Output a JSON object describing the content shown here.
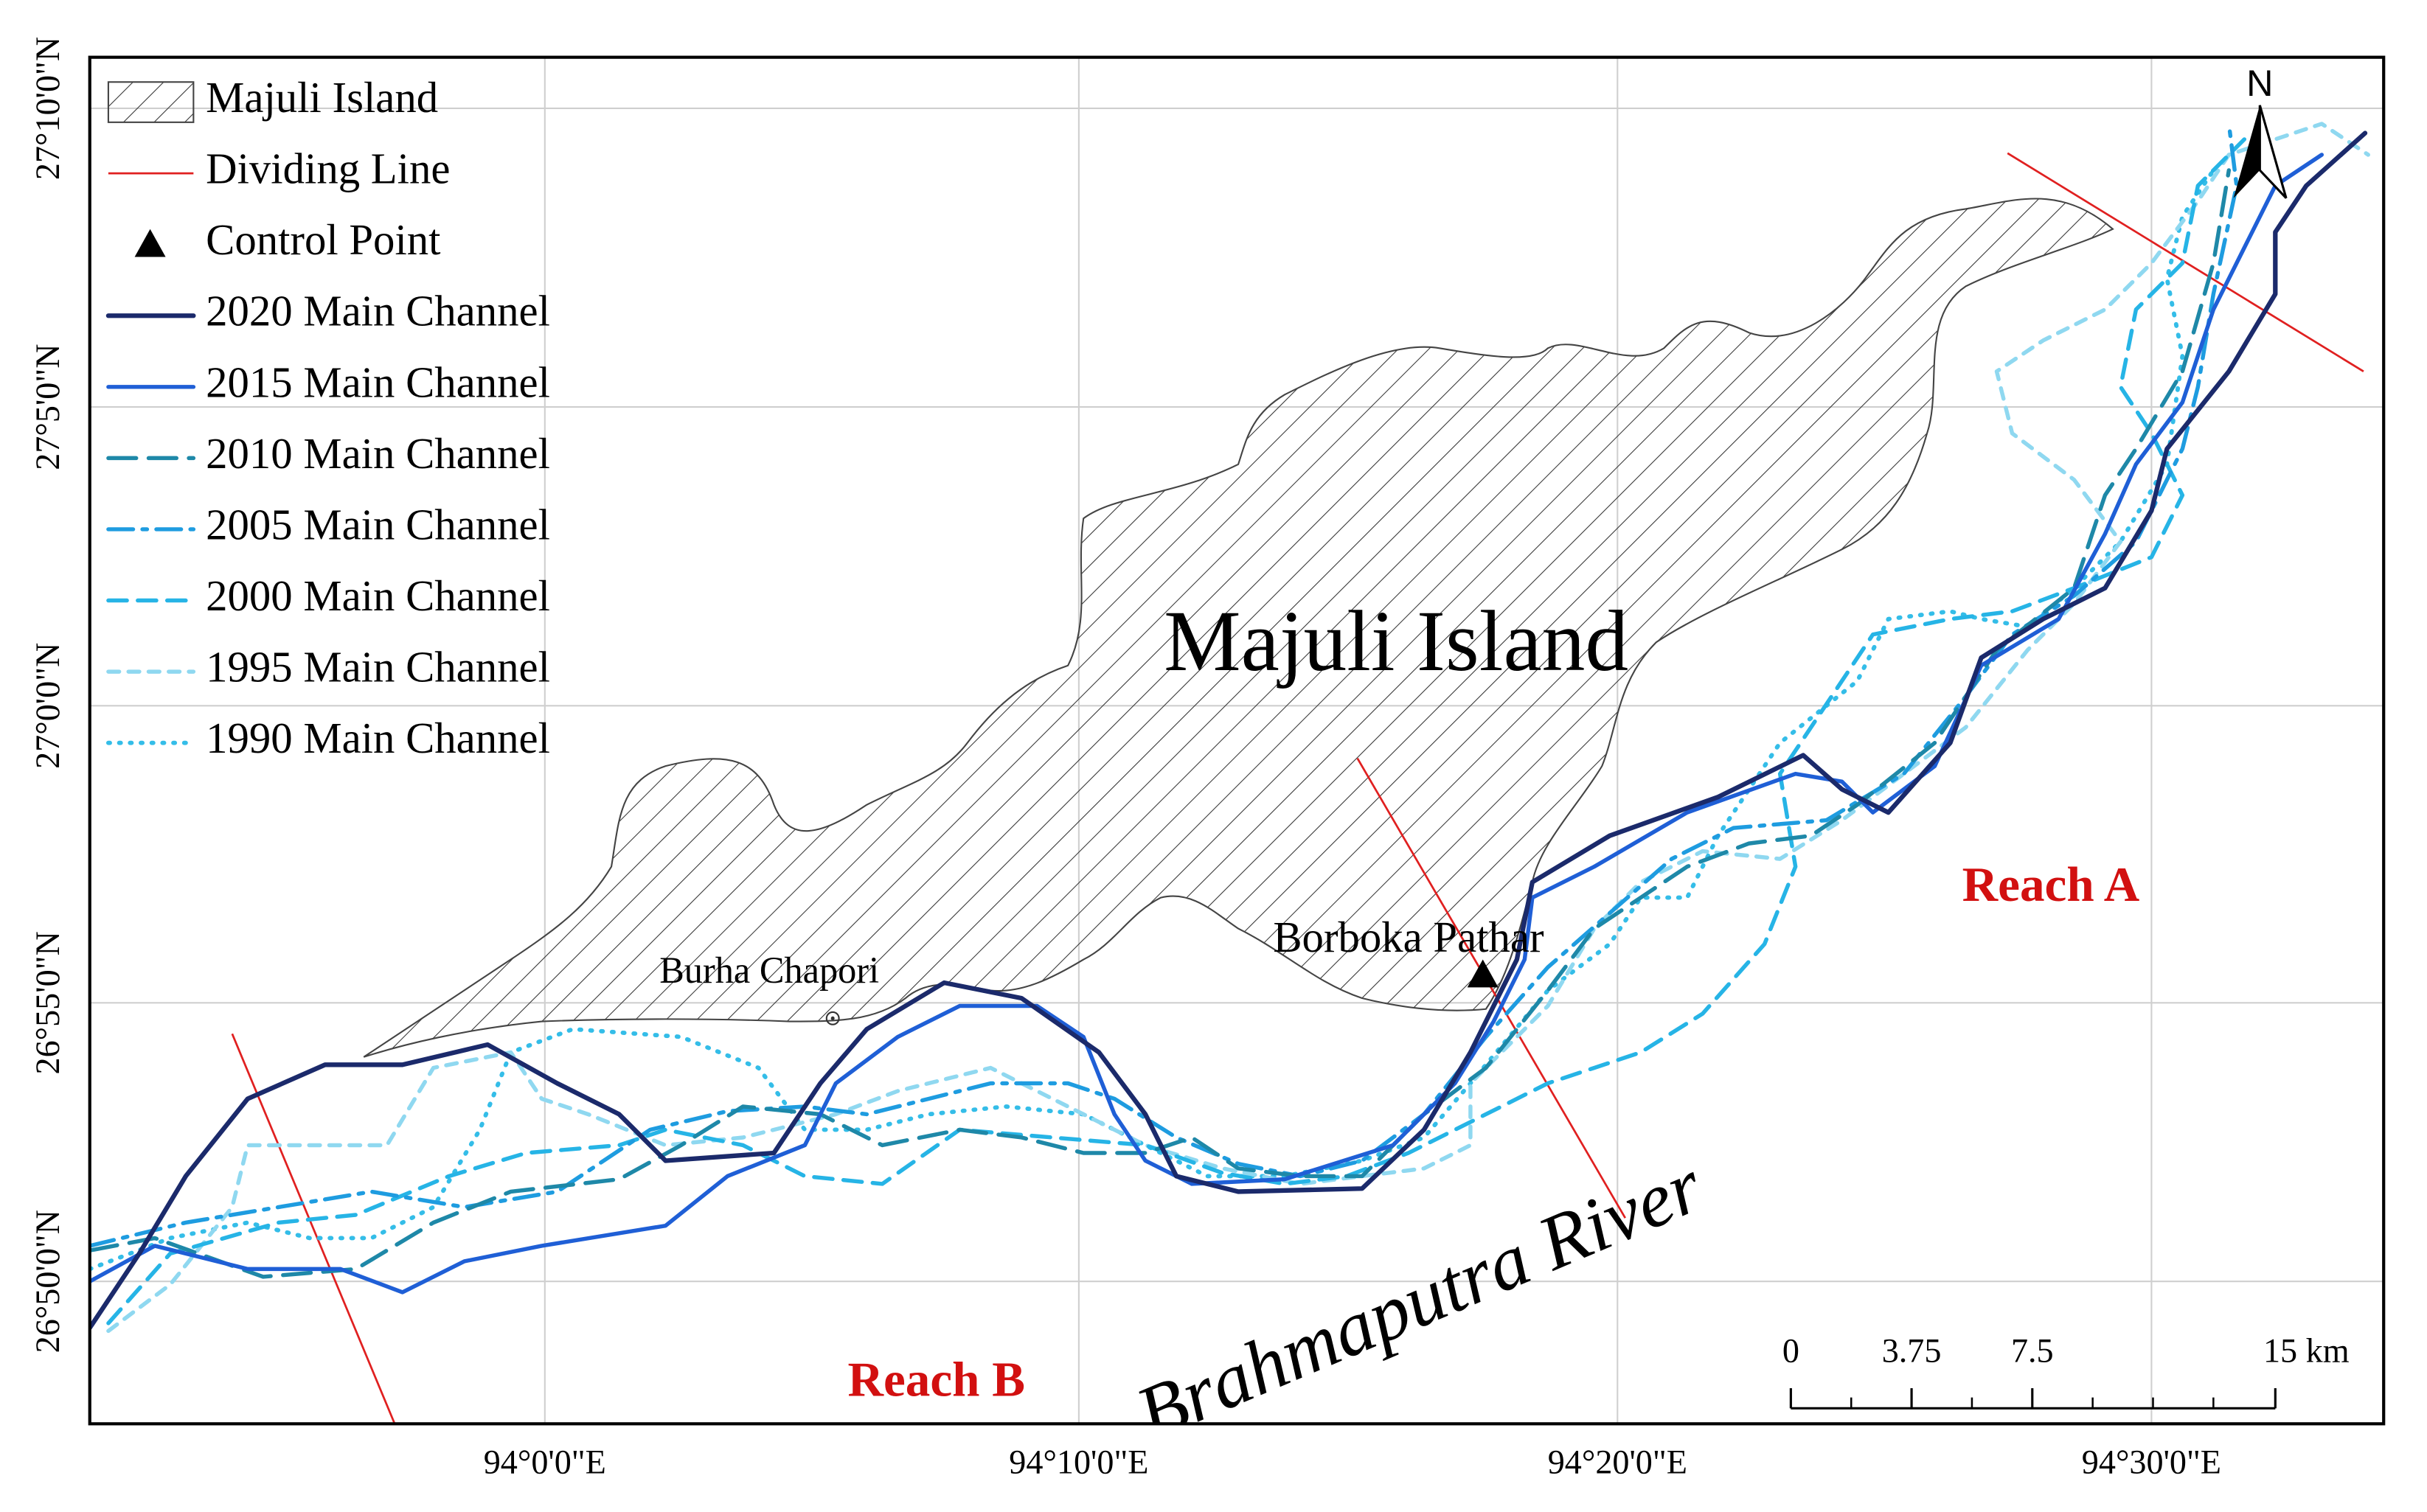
{
  "legend": {
    "items": [
      {
        "label": "Majuli Island"
      },
      {
        "label": "Dividing Line"
      },
      {
        "label": "Control Point"
      },
      {
        "label": "2020 Main Channel"
      },
      {
        "label": "2015 Main Channel"
      },
      {
        "label": "2010 Main Channel"
      },
      {
        "label": "2005 Main Channel"
      },
      {
        "label": "2000 Main Channel"
      },
      {
        "label": "1995 Main Channel"
      },
      {
        "label": "1990 Main Channel"
      }
    ]
  },
  "map_labels": {
    "island": "Majuli Island",
    "river": "Brahmaputra River",
    "burha_chapori": "Burha Chapori",
    "borboka_pathar": "Borboka Pathar",
    "reach_a": "Reach A",
    "reach_b": "Reach B"
  },
  "north_arrow": "N",
  "latitude_labels": [
    "27°10'0\"N",
    "27°5'0\"N",
    "27°0'0\"N",
    "26°55'0\"N",
    "26°50'0\"N"
  ],
  "longitude_labels": [
    "94°0'0\"E",
    "94°10'0\"E",
    "94°20'0\"E",
    "94°30'0\"E"
  ],
  "scale_bar": {
    "labels": [
      "0",
      "3.75",
      "7.5",
      "15 km"
    ]
  }
}
